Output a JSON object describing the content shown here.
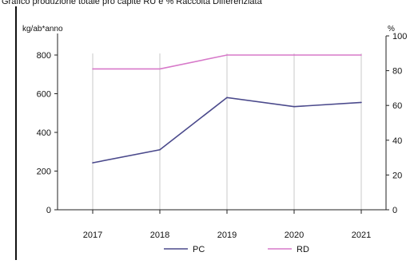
{
  "caption": "Grafico produzione totale pro capite RU e % Raccolta Differenziata",
  "colors": {
    "pc": "#4b4a8c",
    "rd": "#d779c9",
    "axis": "#222222",
    "grid": "#c8c8c8"
  },
  "chart_data": {
    "type": "line",
    "title": "",
    "x": [
      "2017",
      "2018",
      "2019",
      "2020",
      "2021"
    ],
    "series": [
      {
        "name": "PC",
        "axis": "left",
        "values": [
          243,
          310,
          580,
          533,
          555
        ]
      },
      {
        "name": "RD",
        "axis": "right",
        "values": [
          81,
          81,
          89,
          89,
          89
        ]
      }
    ],
    "ylabel_left": "kg/ab*anno",
    "ylabel_right": "%",
    "ylim_left": [
      0,
      800
    ],
    "yticks_left": [
      "0",
      "200",
      "400",
      "600",
      "800"
    ],
    "ylim_right": [
      0,
      100
    ],
    "yticks_right": [
      "0",
      "20",
      "40",
      "60",
      "80",
      "100"
    ],
    "legend": [
      {
        "label": "PC",
        "series": "PC"
      },
      {
        "label": "RD",
        "series": "RD"
      }
    ],
    "legend_position": "bottom",
    "grid": "vertical"
  }
}
